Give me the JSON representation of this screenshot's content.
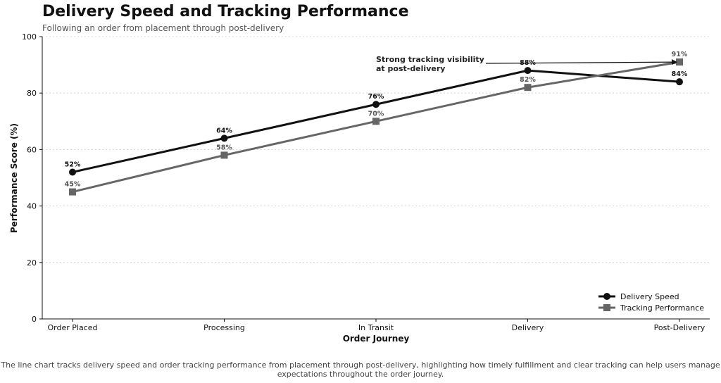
{
  "chart_data": {
    "type": "line",
    "title": "Delivery Speed and Tracking Performance",
    "subtitle": "Following an order from placement through post-delivery",
    "xlabel": "Order Journey",
    "ylabel": "Performance Score (%)",
    "categories": [
      "Order Placed",
      "Processing",
      "In Transit",
      "Delivery",
      "Post-Delivery"
    ],
    "ylim": [
      0,
      100
    ],
    "yticks": [
      0,
      20,
      40,
      60,
      80,
      100
    ],
    "grid": "horizontal dotted",
    "legend_position": "bottom-right",
    "series": [
      {
        "name": "Delivery Speed",
        "values": [
          52,
          64,
          76,
          88,
          84
        ],
        "labels": [
          "52%",
          "64%",
          "76%",
          "88%",
          "84%"
        ],
        "color": "#111111",
        "marker": "circle"
      },
      {
        "name": "Tracking Performance",
        "values": [
          45,
          58,
          70,
          82,
          91
        ],
        "labels": [
          "45%",
          "58%",
          "70%",
          "82%",
          "91%"
        ],
        "color": "#666666",
        "marker": "square"
      }
    ],
    "annotation": {
      "lines": [
        "Strong tracking visibility",
        "at post-delivery"
      ],
      "target_category": "Post-Delivery",
      "target_series": "Tracking Performance",
      "target_value": 91
    },
    "caption": "The line chart tracks delivery speed and order tracking performance from placement through post-delivery, highlighting how timely fulfillment and clear tracking can help users manage expectations throughout the order journey."
  }
}
